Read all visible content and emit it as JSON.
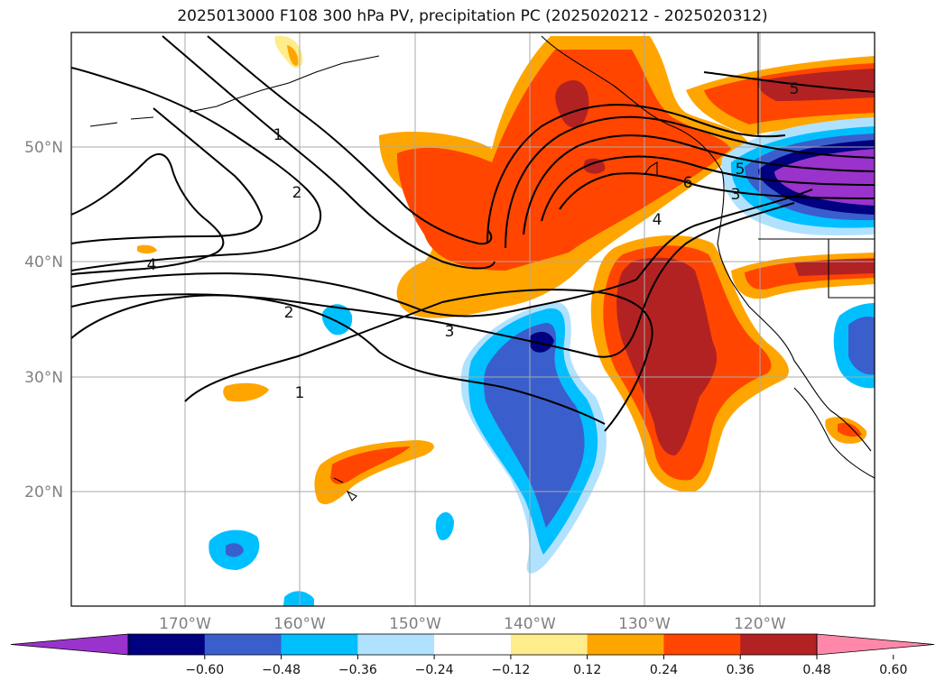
{
  "title": "2025013000 F108 300 hPa PV, precipitation PC (2025020212 - 2025020312)",
  "map": {
    "lat_labels": [
      "50°N",
      "40°N",
      "30°N",
      "20°N"
    ],
    "lon_labels": [
      "170°W",
      "160°W",
      "150°W",
      "140°W",
      "130°W",
      "120°W"
    ],
    "pv_contour_labels": [
      "1",
      "2",
      "3",
      "4",
      "5",
      "6",
      "1",
      "2",
      "3",
      "4",
      "5"
    ]
  },
  "colorbar": {
    "ticks": [
      "−0.60",
      "−0.48",
      "−0.36",
      "−0.24",
      "−0.12",
      "0.12",
      "0.24",
      "0.36",
      "0.48",
      "0.60"
    ],
    "colors": [
      "#9933cc",
      "#000080",
      "#3a5fcd",
      "#00bfff",
      "#b0e2ff",
      "#ffffff",
      "#ffec8b",
      "#ffa500",
      "#ff4500",
      "#b22222",
      "#ff88aa"
    ]
  }
}
